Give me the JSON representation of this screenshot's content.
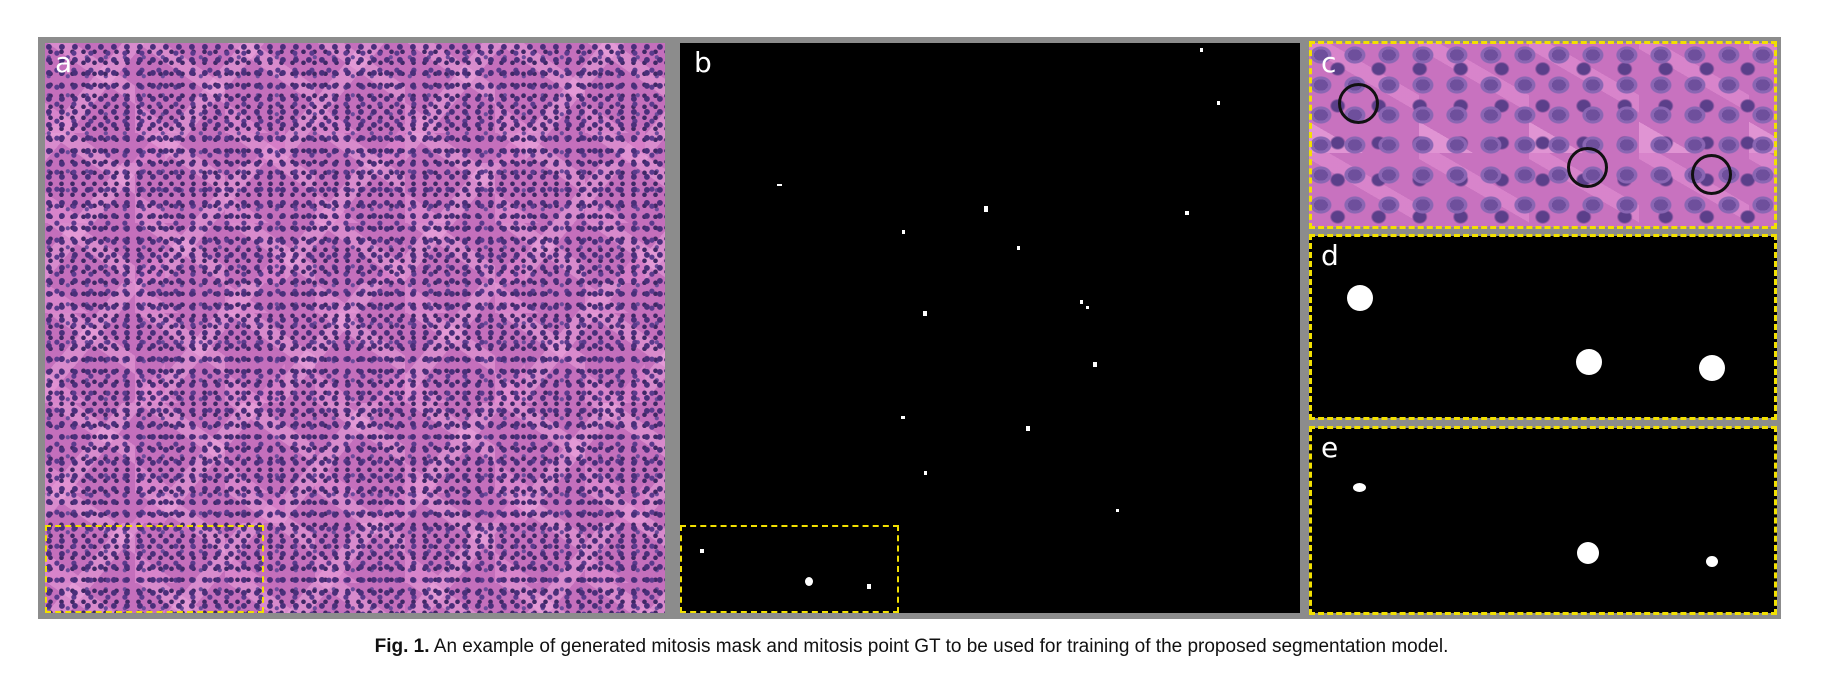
{
  "figure": {
    "caption_label": "Fig. 1.",
    "caption_text": "An example of generated mitosis mask and mitosis point GT to be used for training of the proposed segmentation model."
  },
  "panels": {
    "a": {
      "label": "a"
    },
    "b": {
      "label": "b"
    },
    "c": {
      "label": "c"
    },
    "d": {
      "label": "d"
    },
    "e": {
      "label": "e"
    }
  },
  "colors": {
    "highlight_border": "#f2e000",
    "mask_background": "#000000",
    "mask_foreground": "#ffffff",
    "tissue_stain": "#c46fbc"
  }
}
